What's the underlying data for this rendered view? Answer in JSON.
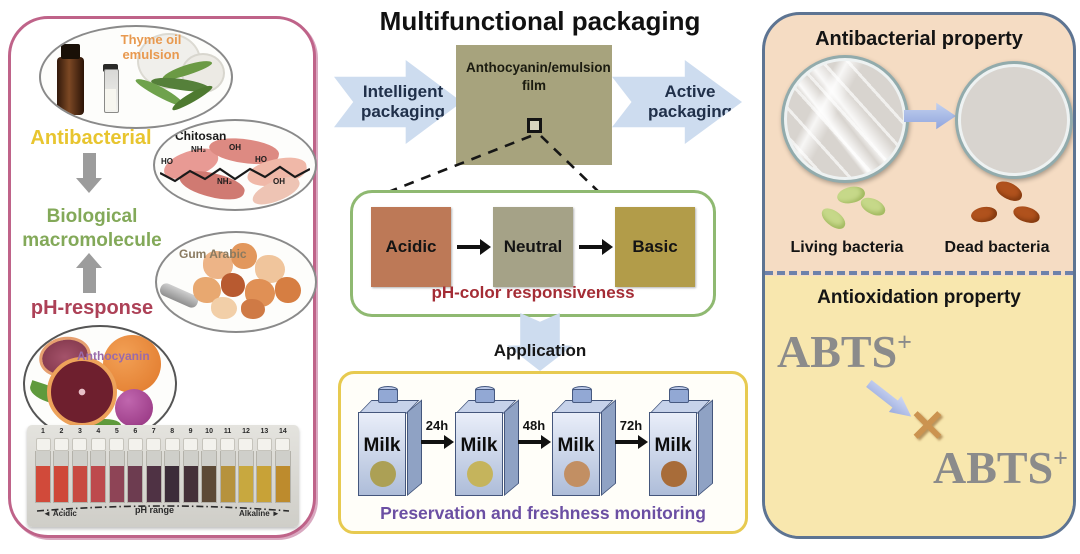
{
  "title": "Multifunctional packaging",
  "left_panel": {
    "thyme_label": "Thyme oil emulsion",
    "antibacterial_label": "Antibacterial",
    "chitosan_label": "Chitosan",
    "chitosan_groups": [
      "HO",
      "NH₂",
      "OH",
      "HO",
      "NH₂",
      "OH"
    ],
    "biological_label": "Biological macromolecule",
    "gum_arabic_label": "Gum Arabic",
    "ph_response_label": "pH-response",
    "anthocyanin_label": "Anthocyanin",
    "ph_strip": {
      "acidic_label": "Acidic",
      "range_label": "pH range",
      "alkaline_label": "Alkaline",
      "left_arrow": "◄",
      "right_arrow": "►",
      "vials": [
        {
          "num": "1",
          "color": "#d14a3a"
        },
        {
          "num": "2",
          "color": "#cf4838"
        },
        {
          "num": "3",
          "color": "#c84a41"
        },
        {
          "num": "4",
          "color": "#bd4a4d"
        },
        {
          "num": "5",
          "color": "#8e4456"
        },
        {
          "num": "6",
          "color": "#6d3c50"
        },
        {
          "num": "7",
          "color": "#4f3244"
        },
        {
          "num": "8",
          "color": "#3c2d39"
        },
        {
          "num": "9",
          "color": "#453139"
        },
        {
          "num": "10",
          "color": "#5d4a36"
        },
        {
          "num": "11",
          "color": "#b6923d"
        },
        {
          "num": "12",
          "color": "#c8a83f"
        },
        {
          "num": "13",
          "color": "#c8a237"
        },
        {
          "num": "14",
          "color": "#bd8b2d"
        }
      ]
    }
  },
  "center": {
    "intelligent_label": "Intelligent packaging",
    "film_label": "Anthocyanin/emulsion film",
    "active_label": "Active packaging",
    "ph_states": [
      {
        "label": "Acidic",
        "color": "#bd7957"
      },
      {
        "label": "Neutral",
        "color": "#a5a287"
      },
      {
        "label": "Basic",
        "color": "#b29c49"
      }
    ],
    "ph_color_label": "pH-color responsiveness",
    "application_label": "Application",
    "milk": {
      "carton_label": "Milk",
      "steps": [
        {
          "time": "24h"
        },
        {
          "time": "48h"
        },
        {
          "time": "72h"
        }
      ],
      "dot_colors": [
        "#aca055",
        "#c5b45c",
        "#c28f63",
        "#a86c39"
      ]
    },
    "preservation_label": "Preservation and freshness monitoring"
  },
  "right_panel": {
    "antibacterial_title": "Antibacterial property",
    "living_label": "Living bacteria",
    "dead_label": "Dead bacteria",
    "antioxidation_title": "Antioxidation property",
    "abts_base": "ABTS",
    "abts_sup": "+",
    "cross_glyph": "✕"
  },
  "colors": {
    "film_box": "#a7a37d",
    "left_border": "#bf6389",
    "right_border": "#5d7492",
    "ph_box_border": "#8fb971",
    "milk_box_border": "#e7ca50",
    "peach_bg": "#f5dcc3",
    "yellow_bg": "#f8e7ae",
    "arrow_blue": "#cddcef"
  }
}
